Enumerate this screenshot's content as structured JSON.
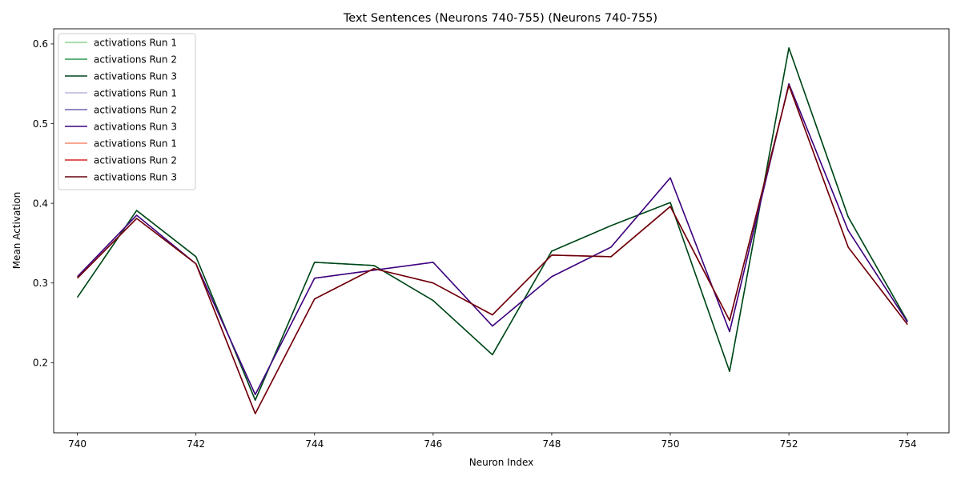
{
  "chart_data": {
    "type": "line",
    "title": "Text Sentences (Neurons 740-755) (Neurons 740-755)",
    "xlabel": "Neuron Index",
    "ylabel": "Mean Activation",
    "x": [
      740,
      741,
      742,
      743,
      744,
      745,
      746,
      747,
      748,
      749,
      750,
      751,
      752,
      753,
      754
    ],
    "xlim": [
      739.6,
      754.7
    ],
    "ylim": [
      0.112,
      0.619
    ],
    "xticks": [
      740,
      742,
      744,
      746,
      748,
      750,
      752,
      754
    ],
    "yticks": [
      0.2,
      0.3,
      0.4,
      0.5,
      0.6
    ],
    "ytick_labels": [
      "0.2",
      "0.3",
      "0.4",
      "0.5",
      "0.6"
    ],
    "grid": false,
    "legend_position": "top-left",
    "series": [
      {
        "name": "activations Run 1",
        "color": "#8fd18e",
        "values": [
          0.282,
          0.391,
          0.333,
          0.153,
          0.326,
          0.322,
          0.278,
          0.21,
          0.34,
          0.372,
          0.401,
          0.189,
          0.595,
          0.383,
          0.252
        ]
      },
      {
        "name": "activations Run 2",
        "color": "#2b9a4c",
        "values": [
          0.282,
          0.391,
          0.333,
          0.153,
          0.326,
          0.322,
          0.278,
          0.21,
          0.34,
          0.372,
          0.401,
          0.189,
          0.595,
          0.383,
          0.252
        ]
      },
      {
        "name": "activations Run 3",
        "color": "#00441b",
        "values": [
          0.282,
          0.391,
          0.333,
          0.153,
          0.326,
          0.322,
          0.278,
          0.21,
          0.34,
          0.372,
          0.401,
          0.189,
          0.595,
          0.383,
          0.252
        ]
      },
      {
        "name": "activations Run 1",
        "color": "#bcb4dc",
        "values": [
          0.308,
          0.385,
          0.324,
          0.16,
          0.306,
          0.316,
          0.326,
          0.246,
          0.308,
          0.345,
          0.432,
          0.239,
          0.55,
          0.366,
          0.251
        ]
      },
      {
        "name": "activations Run 2",
        "color": "#7262ad",
        "values": [
          0.308,
          0.385,
          0.324,
          0.16,
          0.306,
          0.316,
          0.326,
          0.246,
          0.308,
          0.345,
          0.432,
          0.239,
          0.55,
          0.366,
          0.251
        ]
      },
      {
        "name": "activations Run 3",
        "color": "#3f007d",
        "values": [
          0.308,
          0.385,
          0.324,
          0.16,
          0.306,
          0.316,
          0.326,
          0.246,
          0.308,
          0.345,
          0.432,
          0.239,
          0.55,
          0.366,
          0.251
        ]
      },
      {
        "name": "activations Run 1",
        "color": "#f58a6e",
        "values": [
          0.306,
          0.381,
          0.324,
          0.136,
          0.28,
          0.318,
          0.3,
          0.26,
          0.335,
          0.333,
          0.396,
          0.253,
          0.548,
          0.345,
          0.248
        ]
      },
      {
        "name": "activations Run 2",
        "color": "#d92523",
        "values": [
          0.306,
          0.381,
          0.324,
          0.136,
          0.28,
          0.318,
          0.3,
          0.26,
          0.335,
          0.333,
          0.396,
          0.253,
          0.548,
          0.345,
          0.248
        ]
      },
      {
        "name": "activations Run 3",
        "color": "#67000d",
        "values": [
          0.306,
          0.381,
          0.324,
          0.136,
          0.28,
          0.318,
          0.3,
          0.26,
          0.335,
          0.333,
          0.396,
          0.253,
          0.548,
          0.345,
          0.248
        ]
      }
    ]
  }
}
